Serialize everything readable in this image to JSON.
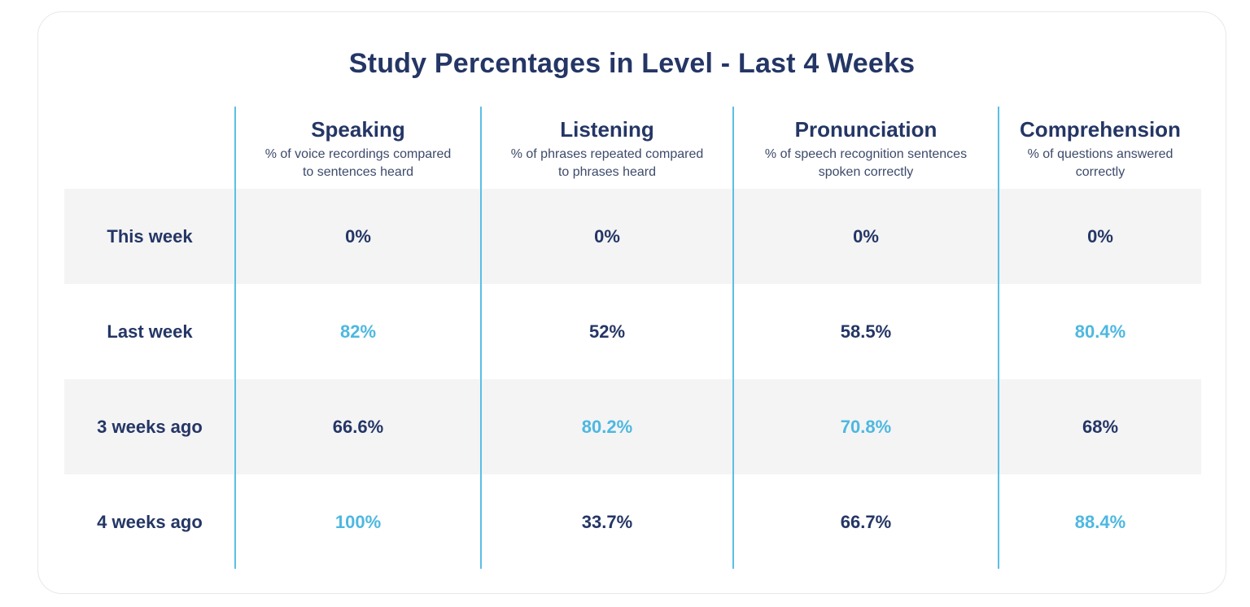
{
  "title": "Study Percentages in Level - Last 4 Weeks",
  "colors": {
    "heading": "#243665",
    "highlight": "#4db8e0",
    "divider": "#5bbfe5",
    "band": "#f4f4f5"
  },
  "columns": [
    {
      "name": "Speaking",
      "description_line1": "% of voice recordings compared",
      "description_line2": "to sentences heard"
    },
    {
      "name": "Listening",
      "description_line1": "% of phrases repeated compared",
      "description_line2": "to phrases heard"
    },
    {
      "name": "Pronunciation",
      "description_line1": "% of speech recognition sentences",
      "description_line2": "spoken correctly"
    },
    {
      "name": "Comprehension",
      "description_line1": "% of questions answered",
      "description_line2": "correctly"
    }
  ],
  "rows": [
    {
      "label": "This week",
      "values": [
        "0%",
        "0%",
        "0%",
        "0%"
      ],
      "highlighted": [
        false,
        false,
        false,
        false
      ]
    },
    {
      "label": "Last week",
      "values": [
        "82%",
        "52%",
        "58.5%",
        "80.4%"
      ],
      "highlighted": [
        true,
        false,
        false,
        true
      ]
    },
    {
      "label": "3 weeks ago",
      "values": [
        "66.6%",
        "80.2%",
        "70.8%",
        "68%"
      ],
      "highlighted": [
        false,
        true,
        true,
        false
      ]
    },
    {
      "label": "4 weeks ago",
      "values": [
        "100%",
        "33.7%",
        "66.7%",
        "88.4%"
      ],
      "highlighted": [
        true,
        false,
        false,
        true
      ]
    }
  ]
}
